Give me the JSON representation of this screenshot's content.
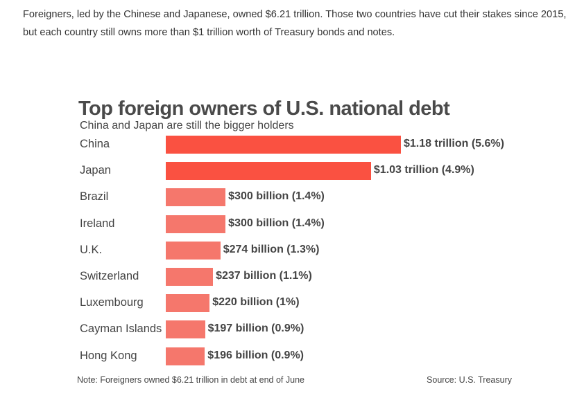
{
  "article": {
    "paragraph": "Foreigners, led by the Chinese and Japanese, owned $6.21 trillion. Those two countries have cut their stakes since 2015, but each country still owns more than $1 trillion worth of Treasury bonds and notes."
  },
  "chart_data": {
    "type": "bar",
    "orientation": "horizontal",
    "title": "Top foreign owners of U.S. national debt",
    "subtitle": "China and Japan are still the bigger holders",
    "categories": [
      "China",
      "Japan",
      "Brazil",
      "Ireland",
      "U.K.",
      "Switzerland",
      "Luxembourg",
      "Cayman Islands",
      "Hong Kong"
    ],
    "values": [
      1180,
      1030,
      300,
      300,
      274,
      237,
      220,
      197,
      196
    ],
    "unit": "billion USD",
    "data_labels": [
      "$1.18 trillion (5.6%)",
      "$1.03 trillion (4.9%)",
      "$300 billion (1.4%)",
      "$300 billion (1.4%)",
      "$274 billion (1.3%)",
      "$237 billion (1.1%)",
      "$220 billion (1%)",
      "$197 billion (0.9%)",
      "$196 billion (0.9%)"
    ],
    "highlight_count": 2,
    "colors": {
      "highlight": "#fa5141",
      "normal": "#f5776c"
    },
    "xlim": [
      0,
      1180
    ],
    "grid": false,
    "note": "Note: Foreigners owned $6.21 trillion in debt at end of June",
    "source": "Source: U.S. Treasury"
  }
}
